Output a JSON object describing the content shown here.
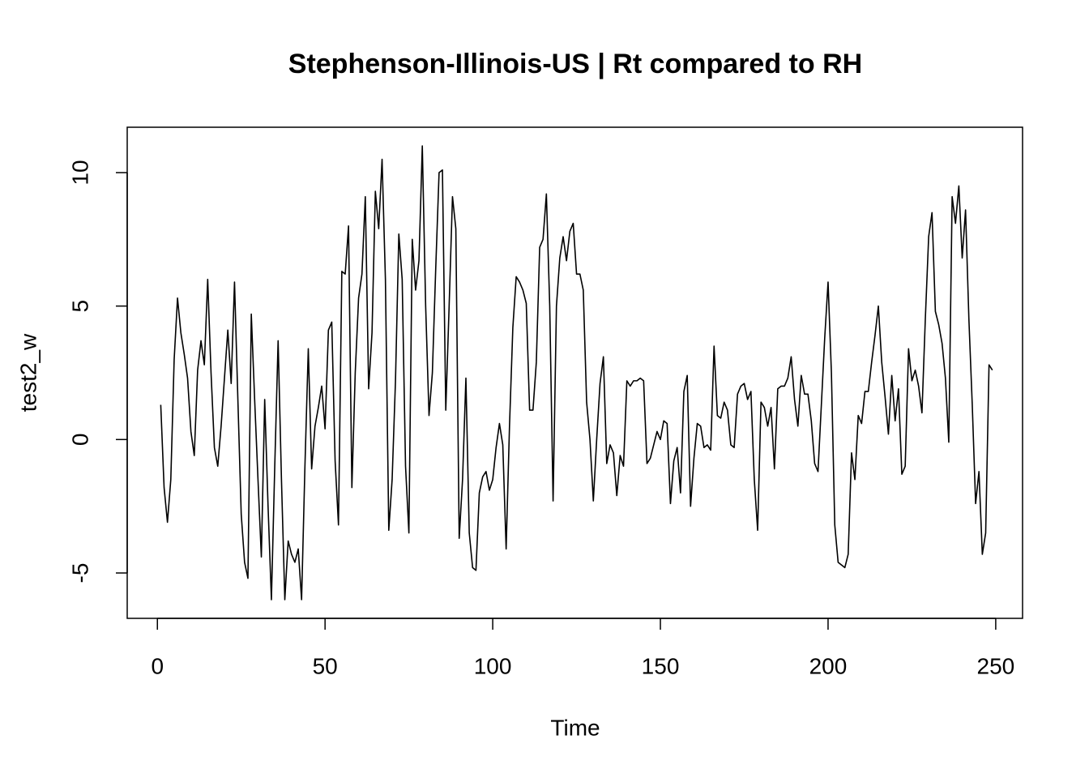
{
  "chart_data": {
    "type": "line",
    "title": "Stephenson-Illinois-US | Rt compared to RH",
    "x_label": "Time",
    "y_label": "test2_w",
    "x": [
      1,
      2,
      3,
      4,
      5,
      6,
      7,
      8,
      9,
      10,
      11,
      12,
      13,
      14,
      15,
      16,
      17,
      18,
      19,
      20,
      21,
      22,
      23,
      24,
      25,
      26,
      27,
      28,
      29,
      30,
      31,
      32,
      33,
      34,
      35,
      36,
      37,
      38,
      39,
      40,
      41,
      42,
      43,
      44,
      45,
      46,
      47,
      48,
      49,
      50,
      51,
      52,
      53,
      54,
      55,
      56,
      57,
      58,
      59,
      60,
      61,
      62,
      63,
      64,
      65,
      66,
      67,
      68,
      69,
      70,
      71,
      72,
      73,
      74,
      75,
      76,
      77,
      78,
      79,
      80,
      81,
      82,
      83,
      84,
      85,
      86,
      87,
      88,
      89,
      90,
      91,
      92,
      93,
      94,
      95,
      96,
      97,
      98,
      99,
      100,
      101,
      102,
      103,
      104,
      105,
      106,
      107,
      108,
      109,
      110,
      111,
      112,
      113,
      114,
      115,
      116,
      117,
      118,
      119,
      120,
      121,
      122,
      123,
      124,
      125,
      126,
      127,
      128,
      129,
      130,
      131,
      132,
      133,
      134,
      135,
      136,
      137,
      138,
      139,
      140,
      141,
      142,
      143,
      144,
      145,
      146,
      147,
      148,
      149,
      150,
      151,
      152,
      153,
      154,
      155,
      156,
      157,
      158,
      159,
      160,
      161,
      162,
      163,
      164,
      165,
      166,
      167,
      168,
      169,
      170,
      171,
      172,
      173,
      174,
      175,
      176,
      177,
      178,
      179,
      180,
      181,
      182,
      183,
      184,
      185,
      186,
      187,
      188,
      189,
      190,
      191,
      192,
      193,
      194,
      195,
      196,
      197,
      198,
      199,
      200,
      201,
      202,
      203,
      204,
      205,
      206,
      207,
      208,
      209,
      210,
      211,
      212,
      213,
      214,
      215,
      216,
      217,
      218,
      219,
      220,
      221,
      222,
      223,
      224,
      225,
      226,
      227,
      228,
      229,
      230,
      231,
      232,
      233,
      234,
      235,
      236,
      237,
      238,
      239,
      240,
      241,
      242,
      243,
      244,
      245,
      246,
      247,
      248,
      249
    ],
    "values": [
      1.3,
      -1.8,
      -3.1,
      -1.5,
      3.0,
      5.3,
      4.0,
      3.2,
      2.3,
      0.3,
      -0.6,
      2.6,
      3.7,
      2.8,
      6.0,
      2.5,
      -0.3,
      -1.0,
      0.5,
      2.3,
      4.1,
      2.1,
      5.9,
      1.5,
      -2.8,
      -4.6,
      -5.2,
      4.7,
      1.5,
      -1.5,
      -4.4,
      1.5,
      -2.5,
      -6.0,
      -1.0,
      3.7,
      -1.5,
      -6.0,
      -3.8,
      -4.3,
      -4.6,
      -4.1,
      -6.0,
      -1.0,
      3.4,
      -1.1,
      0.5,
      1.2,
      2.0,
      0.4,
      4.1,
      4.4,
      -0.8,
      -3.2,
      6.3,
      6.2,
      8.0,
      -1.8,
      2.5,
      5.3,
      6.2,
      9.1,
      1.9,
      4.0,
      9.3,
      7.9,
      10.5,
      6.0,
      -3.4,
      -1.5,
      2.2,
      7.7,
      6.0,
      -1.0,
      -3.5,
      7.5,
      5.6,
      6.7,
      11.0,
      5.0,
      0.9,
      2.5,
      6.4,
      10.0,
      10.1,
      1.1,
      5.0,
      9.1,
      7.9,
      -3.7,
      -1.5,
      2.3,
      -3.5,
      -4.8,
      -4.9,
      -2.0,
      -1.4,
      -1.2,
      -1.9,
      -1.5,
      -0.3,
      0.6,
      -0.2,
      -4.1,
      0.5,
      4.2,
      6.1,
      5.9,
      5.6,
      5.1,
      1.1,
      1.1,
      2.9,
      7.2,
      7.5,
      9.2,
      5.0,
      -2.3,
      5.0,
      6.8,
      7.6,
      6.7,
      7.8,
      8.1,
      6.2,
      6.2,
      5.6,
      1.4,
      0.0,
      -2.3,
      0.0,
      2.1,
      3.1,
      -0.9,
      -0.2,
      -0.5,
      -2.1,
      -0.6,
      -1.0,
      2.2,
      2.0,
      2.2,
      2.2,
      2.3,
      2.2,
      -0.9,
      -0.7,
      -0.2,
      0.3,
      0.0,
      0.7,
      0.6,
      -2.4,
      -0.8,
      -0.3,
      -2.0,
      1.8,
      2.4,
      -2.5,
      -0.7,
      0.6,
      0.5,
      -0.3,
      -0.2,
      -0.4,
      3.5,
      0.9,
      0.8,
      1.4,
      1.1,
      -0.2,
      -0.3,
      1.7,
      2.0,
      2.1,
      1.5,
      1.8,
      -1.5,
      -3.4,
      1.4,
      1.2,
      0.5,
      1.2,
      -1.1,
      1.9,
      2.0,
      2.0,
      2.3,
      3.1,
      1.5,
      0.5,
      2.4,
      1.7,
      1.7,
      0.7,
      -0.9,
      -1.2,
      1.3,
      3.8,
      5.9,
      2.5,
      -3.2,
      -4.6,
      -4.7,
      -4.8,
      -4.3,
      -0.5,
      -1.5,
      0.9,
      0.6,
      1.8,
      1.8,
      2.9,
      3.9,
      5.0,
      2.9,
      1.6,
      0.2,
      2.4,
      0.7,
      1.9,
      -1.3,
      -1.0,
      3.4,
      2.2,
      2.6,
      2.0,
      1.0,
      4.5,
      7.6,
      8.5,
      4.8,
      4.3,
      3.6,
      2.3,
      -0.1,
      9.1,
      8.1,
      9.5,
      6.8,
      8.6,
      4.5,
      1.3,
      -2.4,
      -1.2,
      -4.3,
      -3.5,
      2.8,
      2.6
    ],
    "color": "#000000",
    "xlim": [
      -9,
      258
    ],
    "ylim": [
      -6.7,
      11.7
    ],
    "xticks": [
      0,
      50,
      100,
      150,
      200,
      250
    ],
    "yticks": [
      -5,
      0,
      5,
      10
    ]
  }
}
